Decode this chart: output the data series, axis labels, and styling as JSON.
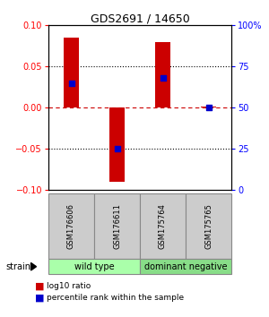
{
  "title": "GDS2691 / 14650",
  "samples": [
    "GSM176606",
    "GSM176611",
    "GSM175764",
    "GSM175765"
  ],
  "log10_ratio": [
    0.085,
    -0.09,
    0.08,
    0.002
  ],
  "percentile_rank": [
    65,
    25,
    68,
    50
  ],
  "ylim_left": [
    -0.1,
    0.1
  ],
  "ylim_right": [
    0,
    100
  ],
  "yticks_left": [
    -0.1,
    -0.05,
    0,
    0.05,
    0.1
  ],
  "yticks_right": [
    0,
    25,
    50,
    75,
    100
  ],
  "ytick_labels_right": [
    "0",
    "25",
    "50",
    "75",
    "100%"
  ],
  "dotted_lines": [
    -0.05,
    0.05
  ],
  "dashed_line": 0,
  "bar_color": "#cc0000",
  "dot_color": "#0000cc",
  "bar_width": 0.35,
  "dot_size": 25,
  "groups": [
    {
      "label": "wild type",
      "samples": [
        0,
        1
      ],
      "color": "#aaffaa"
    },
    {
      "label": "dominant negative",
      "samples": [
        2,
        3
      ],
      "color": "#88dd88"
    }
  ],
  "strain_label": "strain",
  "legend_items": [
    {
      "color": "#cc0000",
      "label": "log10 ratio"
    },
    {
      "color": "#0000cc",
      "label": "percentile rank within the sample"
    }
  ],
  "bg_color": "#ffffff",
  "label_box_color": "#cccccc",
  "label_box_edge": "#888888"
}
